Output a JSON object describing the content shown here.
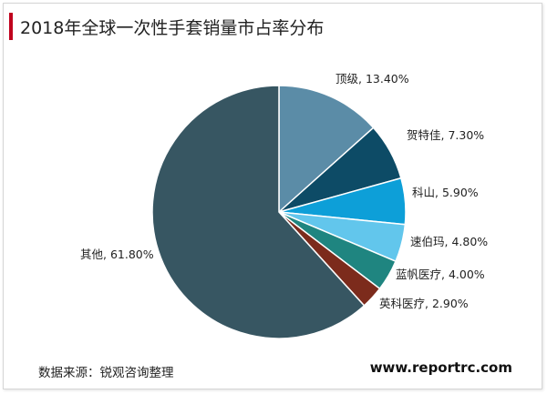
{
  "title": "2018年全球一次性手套销量市占率分布",
  "source": "数据来源：锐观咨询整理",
  "website": "www.reportrc.com",
  "chart_data": {
    "type": "pie",
    "title": "2018年全球一次性手套销量市占率分布",
    "slices": [
      {
        "name": "顶级",
        "value": 13.4,
        "label": "顶级, 13.40%",
        "color": "#5b8ca7"
      },
      {
        "name": "贺特佳",
        "value": 7.3,
        "label": "贺特佳, 7.30%",
        "color": "#0d4b66"
      },
      {
        "name": "科山",
        "value": 5.9,
        "label": "科山, 5.90%",
        "color": "#0d9fd8"
      },
      {
        "name": "速伯玛",
        "value": 4.8,
        "label": "速伯玛, 4.80%",
        "color": "#62c6ec"
      },
      {
        "name": "蓝帆医疗",
        "value": 4.0,
        "label": "蓝帆医疗, 4.00%",
        "color": "#1f8580"
      },
      {
        "name": "英科医疗",
        "value": 2.9,
        "label": "英科医疗, 2.90%",
        "color": "#7c2b1c"
      },
      {
        "name": "其他",
        "value": 61.8,
        "label": "其他, 61.80%",
        "color": "#375662"
      }
    ]
  }
}
